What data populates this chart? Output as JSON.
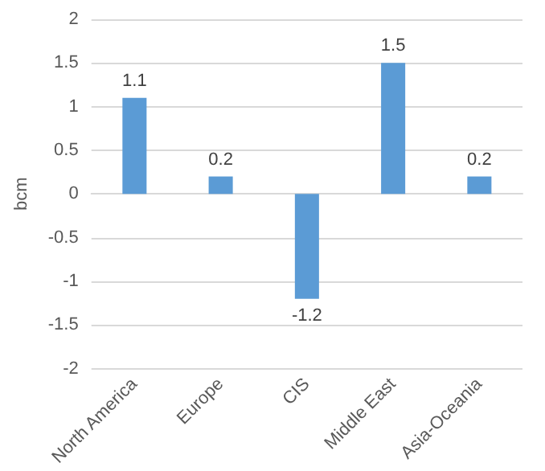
{
  "chart_data": {
    "type": "bar",
    "ylabel": "bcm",
    "categories": [
      "North America",
      "Europe",
      "CIS",
      "Middle East",
      "Asia-Oceania"
    ],
    "values": [
      1.1,
      0.2,
      -1.2,
      1.5,
      0.2
    ],
    "color": "#5b9bd5",
    "ylim": [
      -2,
      2
    ],
    "yticks": [
      -2,
      -1.5,
      -1,
      -0.5,
      0,
      0.5,
      1,
      1.5,
      2
    ],
    "grid": "y",
    "data_labels": true
  }
}
